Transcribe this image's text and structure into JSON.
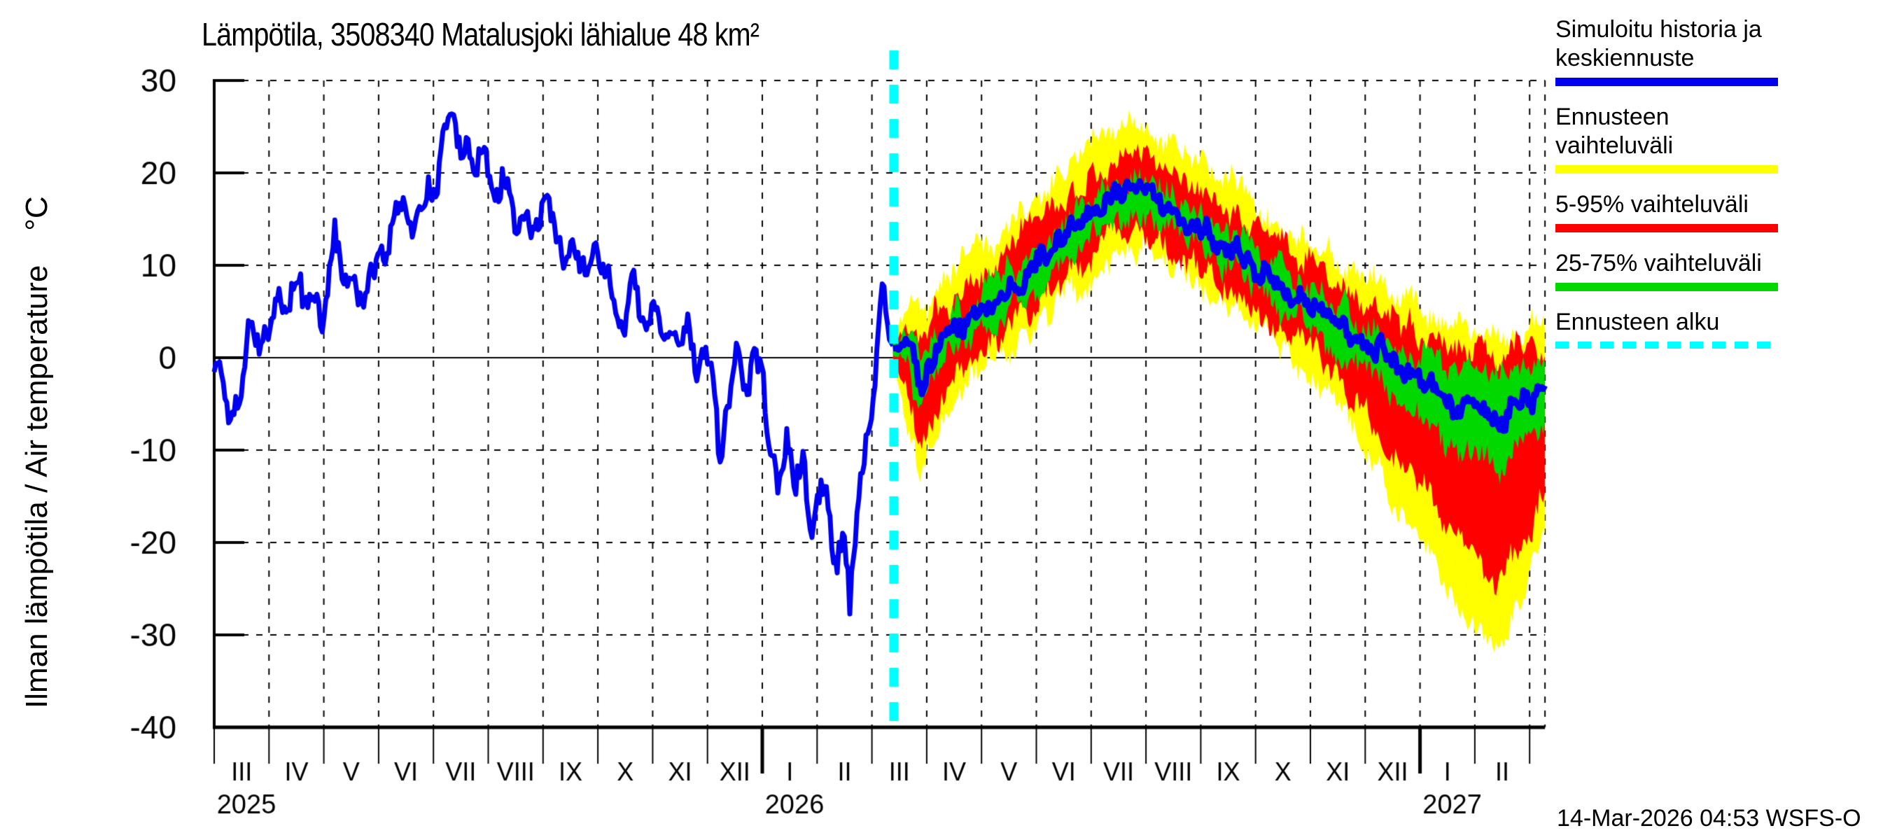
{
  "title": "Lämpötila, 3508340 Matalusjoki lähialue 48 km²",
  "y_axis": {
    "label": "Ilman lämpötila / Air temperature    °C",
    "ticks": [
      30,
      20,
      10,
      0,
      -10,
      -20,
      -30,
      -40
    ]
  },
  "x_axis": {
    "month_labels": [
      "III",
      "IV",
      "V",
      "VI",
      "VII",
      "VIII",
      "IX",
      "X",
      "XI",
      "XII",
      "I",
      "II",
      "III",
      "IV",
      "V",
      "VI",
      "VII",
      "VIII",
      "IX",
      "X",
      "XI",
      "XII",
      "I",
      "II"
    ],
    "year_labels": [
      {
        "label": "2025",
        "month_index": 0
      },
      {
        "label": "2026",
        "month_index": 10
      },
      {
        "label": "2027",
        "month_index": 22
      }
    ]
  },
  "legend": [
    {
      "label": "Simuloitu historia ja keskiennuste",
      "color": "#0000f0",
      "style": "solid"
    },
    {
      "label": "Ennusteen vaihteluväli",
      "color": "#ffff00",
      "style": "solid"
    },
    {
      "label": "5-95% vaihteluväli",
      "color": "#ff0000",
      "style": "solid"
    },
    {
      "label": "25-75% vaihteluväli",
      "color": "#00d800",
      "style": "solid"
    },
    {
      "label": "Ennusteen alku",
      "color": "#00ffff",
      "style": "dashed"
    }
  ],
  "timestamp": "14-Mar-2026 04:53 WSFS-O",
  "colors": {
    "history_line": "#0000f0",
    "forecast_median": "#0000f0",
    "band_minmax": "#ffff00",
    "band_5_95": "#ff0000",
    "band_25_75": "#00d800",
    "forecast_start_line": "#00ffff",
    "axis": "#000000"
  },
  "chart_data": {
    "type": "line",
    "title": "Lämpötila, 3508340 Matalusjoki lähialue 48 km²",
    "ylabel": "Ilman lämpötila / Air temperature °C",
    "ylim": [
      -40,
      30
    ],
    "grid": true,
    "legend_position": "right",
    "x_unit": "months_since_2025-03-01",
    "x_range": [
      0,
      24.28
    ],
    "forecast_start_t": 12.4,
    "forecast_start_date": "14-Mar-2026",
    "history": {
      "name": "Simuloitu historia ja keskiennuste",
      "points": [
        [
          0,
          1
        ],
        [
          0.15,
          -3
        ],
        [
          0.35,
          -8.5
        ],
        [
          0.5,
          -3
        ],
        [
          0.65,
          6
        ],
        [
          0.8,
          1
        ],
        [
          1.0,
          3
        ],
        [
          1.15,
          7
        ],
        [
          1.3,
          4
        ],
        [
          1.5,
          8
        ],
        [
          1.65,
          4
        ],
        [
          1.8,
          6
        ],
        [
          2.0,
          5
        ],
        [
          2.2,
          13
        ],
        [
          2.35,
          7
        ],
        [
          2.5,
          9
        ],
        [
          2.65,
          6
        ],
        [
          2.8,
          9
        ],
        [
          3.0,
          9
        ],
        [
          3.2,
          13
        ],
        [
          3.35,
          15
        ],
        [
          3.5,
          17
        ],
        [
          3.6,
          13
        ],
        [
          3.75,
          16
        ],
        [
          3.9,
          19
        ],
        [
          4.05,
          16
        ],
        [
          4.2,
          24
        ],
        [
          4.35,
          25
        ],
        [
          4.5,
          21
        ],
        [
          4.6,
          23
        ],
        [
          4.75,
          19
        ],
        [
          4.9,
          23
        ],
        [
          5.05,
          19
        ],
        [
          5.2,
          18
        ],
        [
          5.35,
          20
        ],
        [
          5.5,
          15
        ],
        [
          5.65,
          17
        ],
        [
          5.8,
          14
        ],
        [
          5.95,
          16
        ],
        [
          6.1,
          17
        ],
        [
          6.25,
          13
        ],
        [
          6.4,
          10
        ],
        [
          6.55,
          13
        ],
        [
          6.7,
          9
        ],
        [
          6.85,
          12
        ],
        [
          7.0,
          10
        ],
        [
          7.15,
          11
        ],
        [
          7.3,
          6
        ],
        [
          7.45,
          3
        ],
        [
          7.6,
          8
        ],
        [
          7.75,
          5
        ],
        [
          7.9,
          2
        ],
        [
          8.05,
          6
        ],
        [
          8.2,
          1
        ],
        [
          8.35,
          4
        ],
        [
          8.5,
          -1
        ],
        [
          8.65,
          3
        ],
        [
          8.8,
          -2
        ],
        [
          8.95,
          1
        ],
        [
          9.1,
          -2
        ],
        [
          9.25,
          -12
        ],
        [
          9.4,
          -5
        ],
        [
          9.55,
          2
        ],
        [
          9.7,
          -3
        ],
        [
          9.85,
          0
        ],
        [
          10.0,
          -2
        ],
        [
          10.15,
          -9
        ],
        [
          10.3,
          -14
        ],
        [
          10.45,
          -9
        ],
        [
          10.6,
          -16
        ],
        [
          10.75,
          -11
        ],
        [
          10.9,
          -19
        ],
        [
          11.05,
          -13
        ],
        [
          11.2,
          -16
        ],
        [
          11.35,
          -22
        ],
        [
          11.5,
          -18
        ],
        [
          11.6,
          -26
        ],
        [
          11.75,
          -15
        ],
        [
          11.9,
          -8
        ],
        [
          12.05,
          -4
        ],
        [
          12.2,
          9
        ],
        [
          12.3,
          3
        ],
        [
          12.4,
          1
        ]
      ]
    },
    "forecast": {
      "t": [
        12.4,
        12.7,
        12.9,
        13.2,
        13.5,
        14.0,
        14.5,
        15.0,
        15.5,
        16.0,
        16.5,
        17.0,
        17.5,
        18.0,
        18.5,
        19.0,
        19.5,
        20.0,
        20.5,
        21.0,
        21.5,
        22.0,
        22.5,
        23.0,
        23.4,
        23.8,
        24.28
      ],
      "median": [
        1,
        0.5,
        -2.5,
        1,
        2.5,
        5,
        7.5,
        10,
        12.5,
        15,
        18,
        17.5,
        16,
        14,
        12,
        9.5,
        7.5,
        5.5,
        3.5,
        1.5,
        -0.5,
        -2.5,
        -4.5,
        -6,
        -7,
        -5.5,
        -3.5
      ],
      "p25": [
        0.3,
        -2,
        -5,
        -1.5,
        0.5,
        3,
        5.5,
        8,
        10.5,
        13,
        16,
        15.5,
        14,
        12,
        10,
        7.5,
        5.5,
        3.5,
        1,
        -1.5,
        -4,
        -6.5,
        -9,
        -11,
        -12,
        -10,
        -7.5
      ],
      "p75": [
        1.7,
        2.5,
        0,
        3,
        4.5,
        7,
        9.5,
        12,
        14.5,
        17,
        20,
        19.5,
        18,
        16,
        14,
        11.5,
        9.5,
        7.5,
        5.5,
        4,
        2,
        0.5,
        -1,
        -1.5,
        -2,
        -1,
        -0.5
      ],
      "p05": [
        -0.5,
        -5,
        -9,
        -5,
        -2,
        0.5,
        3,
        5.5,
        8,
        11,
        14,
        13.5,
        12,
        10,
        7.5,
        5,
        3,
        1,
        -2,
        -6,
        -10,
        -14,
        -18,
        -22,
        -25,
        -20,
        -15
      ],
      "p95": [
        2.5,
        4,
        2,
        5,
        7,
        9.5,
        12,
        14.5,
        17,
        19.5,
        22,
        22,
        20.5,
        18.5,
        16.5,
        14,
        12,
        10,
        8,
        6.5,
        4.5,
        3,
        1.5,
        1,
        0.5,
        1,
        1.5
      ],
      "min": [
        -1,
        -8,
        -13,
        -8,
        -4,
        -1.5,
        1,
        3.5,
        6,
        9,
        12,
        11.5,
        10,
        8,
        5.5,
        3,
        1,
        -1.5,
        -5,
        -10,
        -15,
        -20,
        -25,
        -29,
        -32,
        -27,
        -20
      ],
      "max": [
        3,
        6,
        4,
        8,
        10,
        12,
        14.5,
        17,
        19.5,
        22.5,
        25.5,
        25,
        23.5,
        21.5,
        19,
        16.5,
        14.5,
        12.5,
        10.5,
        9,
        7,
        5.5,
        4,
        3.5,
        3,
        3.5,
        3
      ]
    },
    "noise": {
      "history_fast": 1.3,
      "history_slow": 2.0,
      "band_fast": 1.2,
      "band_slow": 1.5,
      "median_fast": 0.9,
      "median_slow": 1.3
    }
  }
}
